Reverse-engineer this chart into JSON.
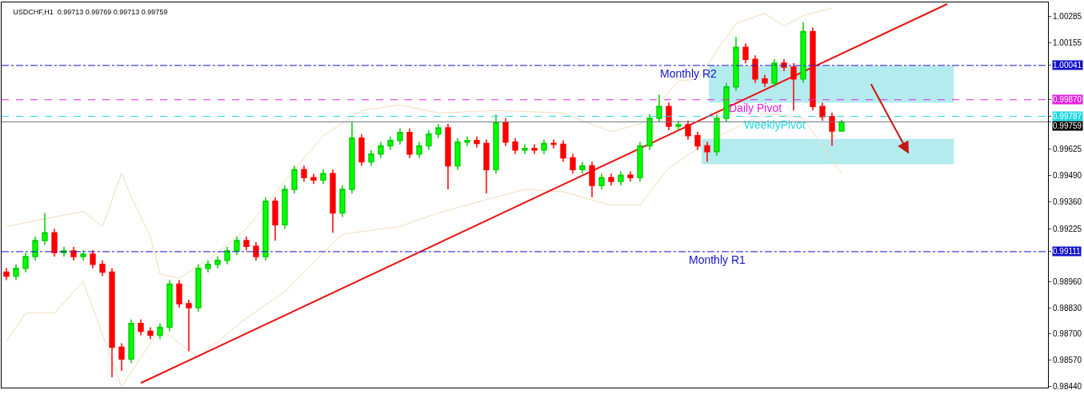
{
  "chart_data": {
    "type": "candlestick",
    "title": "USDCHF,H1  0.99713 0.99769 0.99713 0.99759",
    "categories": [
      null,
      null,
      null,
      null,
      null,
      null,
      null,
      null,
      null,
      null,
      null,
      null,
      null,
      null,
      null,
      null,
      null,
      null,
      null,
      null,
      null,
      null,
      null,
      null,
      null,
      null,
      null,
      null,
      null,
      null,
      null,
      null,
      null,
      null,
      null,
      null,
      null,
      null,
      null,
      null,
      null,
      null,
      null,
      null,
      null,
      null,
      null,
      null,
      null,
      null,
      null,
      null,
      null,
      null,
      null,
      null,
      null,
      null,
      null,
      null,
      null,
      null,
      null,
      null,
      null,
      null,
      null,
      null,
      null,
      null,
      null,
      null,
      null,
      null,
      null,
      null,
      null,
      null,
      null,
      null,
      null,
      null,
      null,
      null,
      null,
      null,
      null,
      null,
      null,
      null,
      null,
      null,
      null,
      null,
      null,
      null,
      null,
      null,
      null,
      null,
      null,
      null,
      null,
      null,
      null,
      null,
      null,
      null,
      null
    ],
    "ohlc": [
      [
        0.99009,
        0.9903,
        0.98969,
        0.98989
      ],
      [
        0.98989,
        0.99048,
        0.98969,
        0.99028
      ],
      [
        0.99028,
        0.99107,
        0.99008,
        0.99087
      ],
      [
        0.99087,
        0.99186,
        0.99067,
        0.99166
      ],
      [
        0.99166,
        0.99304,
        0.99146,
        0.99205
      ],
      [
        0.99205,
        0.99225,
        0.99087,
        0.99107
      ],
      [
        0.99107,
        0.99135,
        0.99087,
        0.99115
      ],
      [
        0.99115,
        0.99135,
        0.99067,
        0.99087
      ],
      [
        0.99087,
        0.99119,
        0.99067,
        0.99099
      ],
      [
        0.99099,
        0.99119,
        0.99028,
        0.99048
      ],
      [
        0.99048,
        0.99068,
        0.98989,
        0.99009
      ],
      [
        0.99009,
        0.99029,
        0.98484,
        0.98634
      ],
      [
        0.98634,
        0.98654,
        0.98516,
        0.98575
      ],
      [
        0.98575,
        0.98772,
        0.98555,
        0.98752
      ],
      [
        0.98752,
        0.98772,
        0.98693,
        0.98713
      ],
      [
        0.98713,
        0.98733,
        0.98673,
        0.98693
      ],
      [
        0.98693,
        0.98753,
        0.98673,
        0.98733
      ],
      [
        0.98733,
        0.98969,
        0.98713,
        0.98949
      ],
      [
        0.98949,
        0.98969,
        0.98831,
        0.98851
      ],
      [
        0.98851,
        0.98871,
        0.98614,
        0.98831
      ],
      [
        0.98831,
        0.99048,
        0.98811,
        0.99028
      ],
      [
        0.99028,
        0.99068,
        0.99008,
        0.99048
      ],
      [
        0.99048,
        0.99088,
        0.99028,
        0.99068
      ],
      [
        0.99068,
        0.99135,
        0.99048,
        0.99115
      ],
      [
        0.99115,
        0.99186,
        0.99095,
        0.99166
      ],
      [
        0.99166,
        0.99186,
        0.99118,
        0.99138
      ],
      [
        0.99138,
        0.99158,
        0.99067,
        0.99087
      ],
      [
        0.99087,
        0.99383,
        0.99067,
        0.99363
      ],
      [
        0.99363,
        0.99383,
        0.99166,
        0.99245
      ],
      [
        0.99245,
        0.99442,
        0.99225,
        0.99422
      ],
      [
        0.99422,
        0.99541,
        0.99402,
        0.99521
      ],
      [
        0.99521,
        0.99541,
        0.99461,
        0.99481
      ],
      [
        0.99481,
        0.99501,
        0.99449,
        0.99469
      ],
      [
        0.99469,
        0.99521,
        0.99449,
        0.99501
      ],
      [
        0.99501,
        0.99521,
        0.99205,
        0.99304
      ],
      [
        0.99304,
        0.99442,
        0.99284,
        0.99422
      ],
      [
        0.99422,
        0.99757,
        0.99402,
        0.99678
      ],
      [
        0.99678,
        0.99698,
        0.9954,
        0.9956
      ],
      [
        0.9956,
        0.99619,
        0.9954,
        0.99599
      ],
      [
        0.99599,
        0.99659,
        0.99579,
        0.99639
      ],
      [
        0.99639,
        0.99686,
        0.99619,
        0.99666
      ],
      [
        0.99666,
        0.99726,
        0.99646,
        0.99706
      ],
      [
        0.99706,
        0.99726,
        0.99579,
        0.99599
      ],
      [
        0.99599,
        0.99659,
        0.99579,
        0.99639
      ],
      [
        0.99639,
        0.99718,
        0.99619,
        0.99698
      ],
      [
        0.99698,
        0.99749,
        0.99678,
        0.99729
      ],
      [
        0.99729,
        0.99749,
        0.99422,
        0.9954
      ],
      [
        0.9954,
        0.99678,
        0.9952,
        0.99658
      ],
      [
        0.99658,
        0.99686,
        0.99638,
        0.99666
      ],
      [
        0.99666,
        0.99686,
        0.99631,
        0.99651
      ],
      [
        0.99651,
        0.99671,
        0.99402,
        0.99521
      ],
      [
        0.99521,
        0.99796,
        0.99501,
        0.99757
      ],
      [
        0.99757,
        0.99777,
        0.99638,
        0.99658
      ],
      [
        0.99658,
        0.99678,
        0.99599,
        0.99619
      ],
      [
        0.99619,
        0.99647,
        0.99599,
        0.99627
      ],
      [
        0.99627,
        0.99647,
        0.99599,
        0.99619
      ],
      [
        0.99619,
        0.99671,
        0.99599,
        0.99651
      ],
      [
        0.99651,
        0.99671,
        0.99627,
        0.99647
      ],
      [
        0.99647,
        0.99667,
        0.9956,
        0.9958
      ],
      [
        0.9958,
        0.996,
        0.99501,
        0.99521
      ],
      [
        0.99521,
        0.9956,
        0.99501,
        0.9954
      ],
      [
        0.9954,
        0.9956,
        0.99383,
        0.99442
      ],
      [
        0.99442,
        0.99501,
        0.99422,
        0.99481
      ],
      [
        0.99481,
        0.99501,
        0.99442,
        0.99462
      ],
      [
        0.99462,
        0.99513,
        0.99442,
        0.99493
      ],
      [
        0.99493,
        0.99513,
        0.99461,
        0.99481
      ],
      [
        0.99481,
        0.99659,
        0.99461,
        0.99639
      ],
      [
        0.99639,
        0.99797,
        0.99619,
        0.99777
      ],
      [
        0.99777,
        0.99895,
        0.99757,
        0.99836
      ],
      [
        0.99836,
        0.99856,
        0.99717,
        0.99737
      ],
      [
        0.99737,
        0.99765,
        0.99717,
        0.99745
      ],
      [
        0.99745,
        0.99765,
        0.9967,
        0.9969
      ],
      [
        0.9969,
        0.9971,
        0.99619,
        0.99639
      ],
      [
        0.99639,
        0.99659,
        0.9956,
        0.99611
      ],
      [
        0.99611,
        0.99797,
        0.99591,
        0.99777
      ],
      [
        0.99777,
        0.99954,
        0.99757,
        0.99934
      ],
      [
        0.99934,
        1.00183,
        0.99914,
        1.00131
      ],
      [
        1.00131,
        1.00151,
        1.00052,
        1.00072
      ],
      [
        1.00072,
        1.00092,
        0.99954,
        0.99974
      ],
      [
        0.99974,
        0.99994,
        0.99934,
        0.99954
      ],
      [
        0.99954,
        1.00073,
        0.99934,
        1.00053
      ],
      [
        1.00053,
        1.00073,
        1.00013,
        1.00033
      ],
      [
        1.00033,
        1.00053,
        0.99816,
        0.99974
      ],
      [
        0.99974,
        1.00257,
        0.99954,
        1.0021
      ],
      [
        1.0021,
        1.0023,
        0.99816,
        0.99836
      ],
      [
        0.99836,
        0.99856,
        0.99765,
        0.99785
      ],
      [
        0.99785,
        0.99805,
        0.99639,
        0.99713
      ],
      [
        0.99713,
        0.99769,
        0.99713,
        0.99759
      ],
      null,
      null,
      null,
      null,
      null,
      null,
      null,
      null,
      null,
      null,
      null,
      null,
      null,
      null,
      null,
      null,
      null,
      null,
      null,
      null,
      null
    ],
    "series": [
      {
        "type": "line",
        "color": "#f2dcb8",
        "values": [
          0.99237,
          null,
          null,
          null,
          null,
          null,
          null,
          null,
          0.99312,
          null,
          0.99237,
          null,
          0.99501,
          0.99383,
          null,
          0.99186,
          0.99001,
          null,
          0.98977,
          null,
          null,
          null,
          0.99107,
          null,
          null,
          0.99225,
          null,
          null,
          null,
          null,
          0.99521,
          null,
          null,
          0.9969,
          null,
          null,
          null,
          0.99816,
          null,
          null,
          null,
          0.99844,
          null,
          null,
          null,
          0.99804,
          null,
          null,
          null,
          null,
          null,
          0.99816,
          null,
          null,
          null,
          null,
          null,
          null,
          0.99804,
          null,
          null,
          null,
          null,
          0.9971,
          null,
          null,
          0.99749,
          null,
          null,
          null,
          0.99962,
          null,
          0.99974,
          null,
          null,
          null,
          1.0025,
          null,
          null,
          1.00301,
          null,
          1.00238,
          null,
          1.00289,
          null,
          null,
          1.00328,
          null,
          null,
          null,
          null,
          null,
          null,
          null,
          null,
          null,
          null,
          null,
          null,
          null,
          null,
          null,
          null,
          null,
          null,
          null,
          null,
          null,
          null
        ]
      },
      {
        "type": "line",
        "color": "#f2dcb8",
        "values": [
          0.98662,
          null,
          0.98804,
          null,
          null,
          0.98804,
          null,
          null,
          0.98961,
          null,
          null,
          null,
          0.98437,
          null,
          null,
          null,
          0.98725,
          null,
          null,
          null,
          0.98583,
          null,
          null,
          null,
          null,
          0.9878,
          null,
          null,
          null,
          0.9891,
          null,
          null,
          null,
          0.99107,
          null,
          0.99198,
          null,
          null,
          null,
          null,
          null,
          0.99237,
          null,
          null,
          null,
          0.99304,
          null,
          null,
          null,
          null,
          0.99371,
          null,
          null,
          null,
          0.99422,
          null,
          null,
          null,
          0.9941,
          null,
          null,
          null,
          null,
          0.99343,
          null,
          null,
          0.99343,
          null,
          null,
          0.99529,
          null,
          null,
          null,
          0.99658,
          null,
          null,
          null,
          null,
          null,
          0.99804,
          null,
          null,
          null,
          0.99777,
          null,
          null,
          null,
          0.99501,
          null,
          null,
          null,
          null,
          null,
          null,
          null,
          null,
          null,
          null,
          null,
          null,
          null,
          null,
          null,
          null,
          null,
          null,
          null,
          null,
          null
        ]
      },
      {
        "type": "line",
        "color": "#e81414",
        "values": [
          null,
          null,
          null,
          null,
          null,
          null,
          null,
          null,
          null,
          null,
          null,
          null,
          null,
          null,
          0.98455,
          null,
          null,
          null,
          null,
          null,
          null,
          null,
          null,
          null,
          null,
          null,
          null,
          null,
          null,
          null,
          null,
          null,
          null,
          null,
          null,
          null,
          null,
          null,
          null,
          null,
          null,
          null,
          null,
          null,
          null,
          null,
          null,
          null,
          null,
          null,
          null,
          null,
          null,
          null,
          null,
          null,
          null,
          null,
          null,
          null,
          null,
          null,
          null,
          null,
          null,
          null,
          null,
          null,
          null,
          null,
          null,
          null,
          null,
          null,
          null,
          null,
          null,
          null,
          null,
          null,
          null,
          null,
          null,
          null,
          null,
          null,
          null,
          null,
          null,
          null,
          null,
          null,
          null,
          null,
          null,
          null,
          null,
          null,
          1.00348,
          null,
          null,
          null,
          null,
          null,
          null,
          null,
          null,
          null,
          null
        ]
      }
    ],
    "ylim": [
      0.98432,
      1.00356
    ],
    "yticks": [
      {
        "value": 1.00285,
        "label": "1.00285"
      },
      {
        "value": 1.00155,
        "label": "1.00155"
      },
      {
        "value": 1.00041,
        "label": "1.00041"
      },
      {
        "value": 0.9987,
        "label": "0.99870"
      },
      {
        "value": 0.99787,
        "label": "0.99787"
      },
      {
        "value": 0.99759,
        "label": "0.99759"
      },
      {
        "value": 0.99625,
        "label": "0.99625"
      },
      {
        "value": 0.9949,
        "label": "0.99490"
      },
      {
        "value": 0.9936,
        "label": "0.99360"
      },
      {
        "value": 0.99225,
        "label": "0.99225"
      },
      {
        "value": 0.99111,
        "label": "0.99111"
      },
      {
        "value": 0.9896,
        "label": "0.98960"
      },
      {
        "value": 0.9883,
        "label": "0.98830"
      },
      {
        "value": 0.987,
        "label": "0.98700"
      },
      {
        "value": 0.9857,
        "label": "0.98570"
      },
      {
        "value": 0.9844,
        "label": "0.98440"
      }
    ],
    "ref_lines": [
      {
        "axis": "y",
        "value": 1.00041,
        "label": "Monthly R2",
        "color": "#1010c8",
        "line_style": "dashdot"
      },
      {
        "axis": "y",
        "value": 0.9987,
        "label": "Daily Pivot",
        "color": "#e020e0",
        "line_style": "dashed"
      },
      {
        "axis": "y",
        "value": 0.99759,
        "color": "#707880",
        "line_style": "solid"
      },
      {
        "axis": "y",
        "value": 0.99787,
        "label": "WeeklyPivot",
        "color": "#20d8e0",
        "line_style": "dashed"
      },
      {
        "axis": "y",
        "value": 0.99111,
        "label": "Monthly R1",
        "color": "#1010c8",
        "line_style": "dashdot"
      }
    ],
    "bands": [
      {
        "axis": "y",
        "from": 0.99855,
        "to": 1.00039,
        "color": "#b3ebee"
      },
      {
        "axis": "y",
        "from": 0.99548,
        "to": 0.99674,
        "color": "#b3ebee"
      }
    ],
    "tick_labels": "y"
  }
}
